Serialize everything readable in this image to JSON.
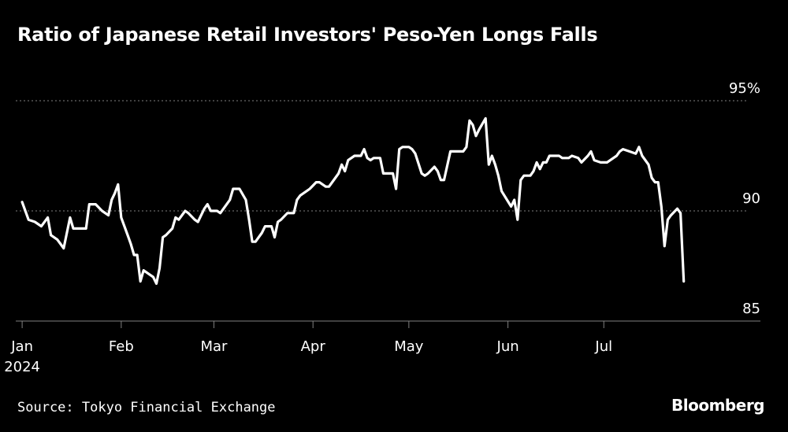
{
  "header": {
    "title": "Ratio of Japanese Retail Investors' Peso-Yen Longs Falls"
  },
  "footer": {
    "source": "Source: Tokyo Financial Exchange",
    "brand": "Bloomberg"
  },
  "colors": {
    "background": "#000000",
    "line": "#ffffff",
    "grid": "#808080"
  },
  "chart_data": {
    "type": "line",
    "title": "Ratio of Japanese Retail Investors' Peso-Yen Longs Falls",
    "xlabel": "",
    "ylabel": "",
    "ylim": [
      85,
      95
    ],
    "yticks": [
      {
        "value": 95,
        "label": "95%"
      },
      {
        "value": 90,
        "label": "90"
      },
      {
        "value": 85,
        "label": "85"
      }
    ],
    "xticks": [
      {
        "date": "2024-01-01",
        "label": "Jan",
        "sublabel": "2024"
      },
      {
        "date": "2024-02-01",
        "label": "Feb"
      },
      {
        "date": "2024-03-01",
        "label": "Mar"
      },
      {
        "date": "2024-04-01",
        "label": "Apr"
      },
      {
        "date": "2024-05-01",
        "label": "May"
      },
      {
        "date": "2024-06-01",
        "label": "Jun"
      },
      {
        "date": "2024-07-01",
        "label": "Jul"
      }
    ],
    "xlim": [
      "2023-12-30",
      "2024-08-19"
    ],
    "grid": "horizontal dotted at 95 and 90",
    "legend": "none",
    "series": [
      {
        "points": [
          [
            "2024-01-01",
            90.4
          ],
          [
            "2024-01-03",
            89.6
          ],
          [
            "2024-01-05",
            89.5
          ],
          [
            "2024-01-07",
            89.3
          ],
          [
            "2024-01-09",
            89.7
          ],
          [
            "2024-01-10",
            88.9
          ],
          [
            "2024-01-12",
            88.7
          ],
          [
            "2024-01-13",
            88.5
          ],
          [
            "2024-01-14",
            88.3
          ],
          [
            "2024-01-16",
            89.7
          ],
          [
            "2024-01-17",
            89.2
          ],
          [
            "2024-01-19",
            89.2
          ],
          [
            "2024-01-20",
            89.2
          ],
          [
            "2024-01-21",
            89.2
          ],
          [
            "2024-01-22",
            90.3
          ],
          [
            "2024-01-23",
            90.3
          ],
          [
            "2024-01-24",
            90.3
          ],
          [
            "2024-01-26",
            90.0
          ],
          [
            "2024-01-28",
            89.8
          ],
          [
            "2024-01-29",
            90.5
          ],
          [
            "2024-01-30",
            90.8
          ],
          [
            "2024-01-31",
            91.2
          ],
          [
            "2024-02-01",
            89.7
          ],
          [
            "2024-02-03",
            88.9
          ],
          [
            "2024-02-04",
            88.5
          ],
          [
            "2024-02-05",
            88.0
          ],
          [
            "2024-02-06",
            88.0
          ],
          [
            "2024-02-07",
            86.8
          ],
          [
            "2024-02-08",
            87.3
          ],
          [
            "2024-02-10",
            87.1
          ],
          [
            "2024-02-11",
            87.0
          ],
          [
            "2024-02-12",
            86.7
          ],
          [
            "2024-02-13",
            87.4
          ],
          [
            "2024-02-14",
            88.8
          ],
          [
            "2024-02-15",
            88.9
          ],
          [
            "2024-02-17",
            89.2
          ],
          [
            "2024-02-18",
            89.7
          ],
          [
            "2024-02-19",
            89.6
          ],
          [
            "2024-02-21",
            90.0
          ],
          [
            "2024-02-22",
            89.9
          ],
          [
            "2024-02-24",
            89.6
          ],
          [
            "2024-02-25",
            89.5
          ],
          [
            "2024-02-27",
            90.1
          ],
          [
            "2024-02-28",
            90.3
          ],
          [
            "2024-02-29",
            90.0
          ],
          [
            "2024-03-01",
            90.0
          ],
          [
            "2024-03-02",
            90.0
          ],
          [
            "2024-03-03",
            89.9
          ],
          [
            "2024-03-05",
            90.3
          ],
          [
            "2024-03-06",
            90.5
          ],
          [
            "2024-03-07",
            91.0
          ],
          [
            "2024-03-08",
            91.0
          ],
          [
            "2024-03-09",
            91.0
          ],
          [
            "2024-03-11",
            90.5
          ],
          [
            "2024-03-12",
            89.6
          ],
          [
            "2024-03-13",
            88.6
          ],
          [
            "2024-03-14",
            88.6
          ],
          [
            "2024-03-16",
            89.0
          ],
          [
            "2024-03-17",
            89.3
          ],
          [
            "2024-03-19",
            89.3
          ],
          [
            "2024-03-20",
            88.8
          ],
          [
            "2024-03-21",
            89.5
          ],
          [
            "2024-03-22",
            89.6
          ],
          [
            "2024-03-24",
            89.9
          ],
          [
            "2024-03-26",
            89.9
          ],
          [
            "2024-03-27",
            90.5
          ],
          [
            "2024-03-28",
            90.7
          ],
          [
            "2024-03-30",
            90.9
          ],
          [
            "2024-03-31",
            91.0
          ],
          [
            "2024-04-02",
            91.3
          ],
          [
            "2024-04-03",
            91.3
          ],
          [
            "2024-04-05",
            91.1
          ],
          [
            "2024-04-06",
            91.1
          ],
          [
            "2024-04-08",
            91.5
          ],
          [
            "2024-04-09",
            91.7
          ],
          [
            "2024-04-10",
            92.1
          ],
          [
            "2024-04-11",
            91.8
          ],
          [
            "2024-04-12",
            92.3
          ],
          [
            "2024-04-14",
            92.5
          ],
          [
            "2024-04-16",
            92.5
          ],
          [
            "2024-04-17",
            92.8
          ],
          [
            "2024-04-18",
            92.4
          ],
          [
            "2024-04-19",
            92.3
          ],
          [
            "2024-04-20",
            92.4
          ],
          [
            "2024-04-22",
            92.4
          ],
          [
            "2024-04-23",
            91.7
          ],
          [
            "2024-04-25",
            91.7
          ],
          [
            "2024-04-26",
            91.7
          ],
          [
            "2024-04-27",
            91.0
          ],
          [
            "2024-04-28",
            92.8
          ],
          [
            "2024-04-29",
            92.9
          ],
          [
            "2024-05-01",
            92.9
          ],
          [
            "2024-05-02",
            92.8
          ],
          [
            "2024-05-03",
            92.6
          ],
          [
            "2024-05-05",
            91.7
          ],
          [
            "2024-05-06",
            91.6
          ],
          [
            "2024-05-07",
            91.7
          ],
          [
            "2024-05-09",
            92.0
          ],
          [
            "2024-05-10",
            91.8
          ],
          [
            "2024-05-11",
            91.4
          ],
          [
            "2024-05-12",
            91.4
          ],
          [
            "2024-05-14",
            92.7
          ],
          [
            "2024-05-16",
            92.7
          ],
          [
            "2024-05-18",
            92.7
          ],
          [
            "2024-05-19",
            92.9
          ],
          [
            "2024-05-20",
            94.1
          ],
          [
            "2024-05-21",
            93.9
          ],
          [
            "2024-05-22",
            93.4
          ],
          [
            "2024-05-23",
            93.7
          ],
          [
            "2024-05-25",
            94.2
          ],
          [
            "2024-05-26",
            92.1
          ],
          [
            "2024-05-27",
            92.5
          ],
          [
            "2024-05-28",
            92.1
          ],
          [
            "2024-05-29",
            91.6
          ],
          [
            "2024-05-30",
            90.9
          ],
          [
            "2024-06-02",
            90.2
          ],
          [
            "2024-06-03",
            90.5
          ],
          [
            "2024-06-04",
            89.6
          ],
          [
            "2024-06-05",
            91.4
          ],
          [
            "2024-06-06",
            91.6
          ],
          [
            "2024-06-08",
            91.6
          ],
          [
            "2024-06-09",
            91.8
          ],
          [
            "2024-06-10",
            92.2
          ],
          [
            "2024-06-11",
            91.9
          ],
          [
            "2024-06-12",
            92.2
          ],
          [
            "2024-06-13",
            92.2
          ],
          [
            "2024-06-14",
            92.5
          ],
          [
            "2024-06-16",
            92.5
          ],
          [
            "2024-06-17",
            92.5
          ],
          [
            "2024-06-18",
            92.4
          ],
          [
            "2024-06-19",
            92.4
          ],
          [
            "2024-06-20",
            92.4
          ],
          [
            "2024-06-21",
            92.5
          ],
          [
            "2024-06-23",
            92.4
          ],
          [
            "2024-06-24",
            92.2
          ],
          [
            "2024-06-26",
            92.5
          ],
          [
            "2024-06-27",
            92.7
          ],
          [
            "2024-06-28",
            92.3
          ],
          [
            "2024-06-30",
            92.2
          ],
          [
            "2024-07-02",
            92.2
          ],
          [
            "2024-07-04",
            92.4
          ],
          [
            "2024-07-05",
            92.5
          ],
          [
            "2024-07-06",
            92.7
          ],
          [
            "2024-07-07",
            92.8
          ],
          [
            "2024-07-09",
            92.7
          ],
          [
            "2024-07-11",
            92.6
          ],
          [
            "2024-07-12",
            92.9
          ],
          [
            "2024-07-13",
            92.5
          ],
          [
            "2024-07-15",
            92.1
          ],
          [
            "2024-07-16",
            91.5
          ],
          [
            "2024-07-17",
            91.3
          ],
          [
            "2024-07-18",
            91.3
          ],
          [
            "2024-07-19",
            90.2
          ],
          [
            "2024-07-20",
            88.4
          ],
          [
            "2024-07-21",
            89.6
          ],
          [
            "2024-07-22",
            89.8
          ],
          [
            "2024-07-24",
            90.1
          ],
          [
            "2024-07-25",
            89.9
          ],
          [
            "2024-07-26",
            86.8
          ]
        ]
      }
    ]
  }
}
